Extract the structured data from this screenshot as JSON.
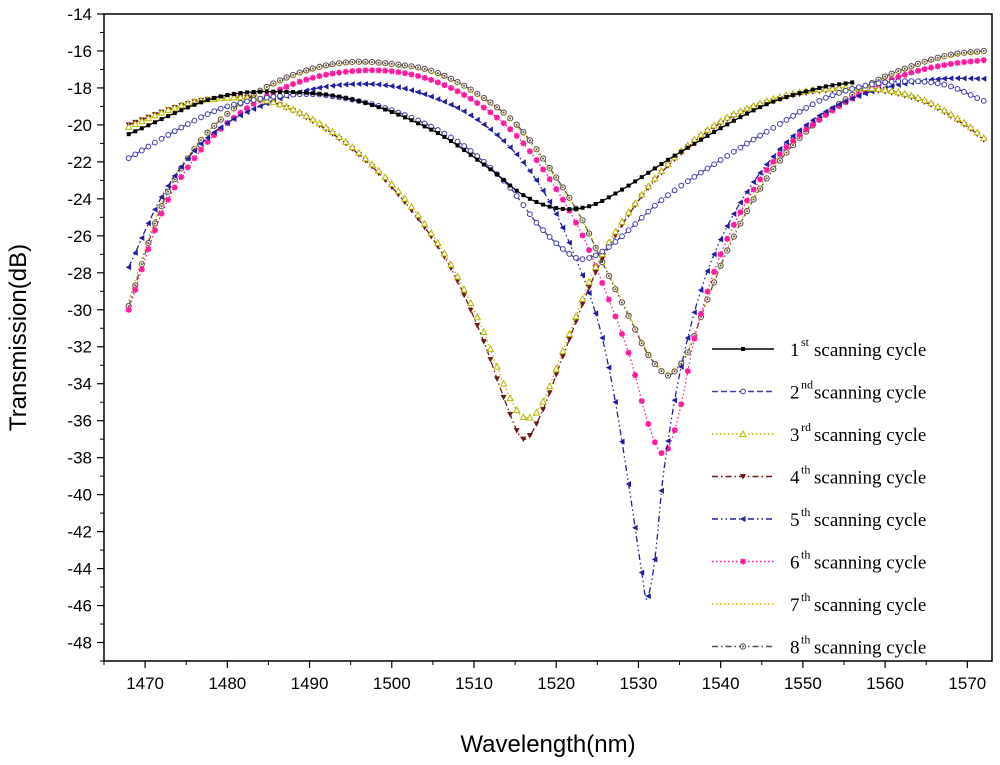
{
  "chart_data": {
    "type": "line",
    "title": "",
    "xlabel": "Wavelength(nm)",
    "ylabel": "Transmission(dB)",
    "xlim": [
      1465,
      1573
    ],
    "ylim": [
      -49,
      -14
    ],
    "xticks": [
      1470,
      1480,
      1490,
      1500,
      1510,
      1520,
      1530,
      1540,
      1550,
      1560,
      1570
    ],
    "yticks": [
      -48,
      -46,
      -44,
      -42,
      -40,
      -38,
      -36,
      -34,
      -32,
      -30,
      -28,
      -26,
      -24,
      -22,
      -20,
      -18,
      -16,
      -14
    ],
    "x_range": [
      1468,
      1572
    ],
    "grid": false,
    "legend_position": "bottom-right",
    "series": [
      {
        "name": "1st scanning cycle",
        "ord": "1",
        "suffix": "st",
        "label": "scanning cycle",
        "color": "#000000",
        "marker": "square",
        "dash": "solid",
        "points": [
          [
            1468,
            -20.5
          ],
          [
            1478,
            -18.6
          ],
          [
            1485,
            -18.2
          ],
          [
            1495,
            -18.6
          ],
          [
            1505,
            -20.3
          ],
          [
            1512,
            -22.4
          ],
          [
            1516,
            -23.8
          ],
          [
            1520,
            -24.5
          ],
          [
            1524,
            -24.4
          ],
          [
            1528,
            -23.5
          ],
          [
            1535,
            -21.5
          ],
          [
            1545,
            -19.0
          ],
          [
            1552,
            -18.0
          ],
          [
            1556,
            -17.7
          ]
        ]
      },
      {
        "name": "2nd scanning cycle",
        "ord": "2",
        "suffix": "nd",
        "label": "scanning cycle",
        "color": "#3f3fa8",
        "marker": "circle-open",
        "dash": "dash",
        "points": [
          [
            1468,
            -21.8
          ],
          [
            1475,
            -20.0
          ],
          [
            1480,
            -19.0
          ],
          [
            1487,
            -18.4
          ],
          [
            1492,
            -18.4
          ],
          [
            1500,
            -19.2
          ],
          [
            1508,
            -20.9
          ],
          [
            1514,
            -23.2
          ],
          [
            1518,
            -25.5
          ],
          [
            1522,
            -27.1
          ],
          [
            1524,
            -27.2
          ],
          [
            1527,
            -26.4
          ],
          [
            1533,
            -24.0
          ],
          [
            1540,
            -21.9
          ],
          [
            1547,
            -20.0
          ],
          [
            1553,
            -18.5
          ],
          [
            1560,
            -17.7
          ],
          [
            1567,
            -17.8
          ],
          [
            1572,
            -18.7
          ]
        ]
      },
      {
        "name": "3rd scanning cycle",
        "ord": "3",
        "suffix": "rd",
        "label": "scanning cycle",
        "color": "#b8b800",
        "marker": "triangle-up-open",
        "dash": "dot",
        "points": [
          [
            1468,
            -20.1
          ],
          [
            1474,
            -19.0
          ],
          [
            1478,
            -18.6
          ],
          [
            1484,
            -18.6
          ],
          [
            1490,
            -19.6
          ],
          [
            1496,
            -21.5
          ],
          [
            1502,
            -24.2
          ],
          [
            1507,
            -27.4
          ],
          [
            1511,
            -31.0
          ],
          [
            1514,
            -34.4
          ],
          [
            1516,
            -35.8
          ],
          [
            1518,
            -35.3
          ],
          [
            1521,
            -32.0
          ],
          [
            1525,
            -27.5
          ],
          [
            1530,
            -24.0
          ],
          [
            1535,
            -21.5
          ],
          [
            1540,
            -19.8
          ],
          [
            1545,
            -18.8
          ],
          [
            1550,
            -18.2
          ],
          [
            1555,
            -18.0
          ],
          [
            1560,
            -18.1
          ],
          [
            1565,
            -18.7
          ],
          [
            1570,
            -20.0
          ],
          [
            1572,
            -20.7
          ]
        ]
      },
      {
        "name": "4th scanning cycle",
        "ord": "4",
        "suffix": "th",
        "label": "scanning cycle",
        "color": "#6b1a1a",
        "marker": "triangle-down",
        "dash": "dashdot",
        "points": [
          [
            1468,
            -20.0
          ],
          [
            1474,
            -19.0
          ],
          [
            1478,
            -18.6
          ],
          [
            1484,
            -18.6
          ],
          [
            1490,
            -19.7
          ],
          [
            1496,
            -21.6
          ],
          [
            1502,
            -24.4
          ],
          [
            1507,
            -27.6
          ],
          [
            1511,
            -31.5
          ],
          [
            1514,
            -35.2
          ],
          [
            1516,
            -37.0
          ],
          [
            1518,
            -35.8
          ],
          [
            1521,
            -32.3
          ],
          [
            1525,
            -27.8
          ],
          [
            1530,
            -24.1
          ],
          [
            1535,
            -21.6
          ],
          [
            1540,
            -19.9
          ],
          [
            1545,
            -18.9
          ],
          [
            1550,
            -18.3
          ],
          [
            1555,
            -18.1
          ],
          [
            1560,
            -18.2
          ],
          [
            1565,
            -18.8
          ],
          [
            1570,
            -20.1
          ],
          [
            1572,
            -20.8
          ]
        ]
      },
      {
        "name": "5th scanning cycle",
        "ord": "5",
        "suffix": "th",
        "label": "scanning cycle",
        "color": "#2020a0",
        "marker": "triangle-left",
        "dash": "dashdotdot",
        "points": [
          [
            1468,
            -27.7
          ],
          [
            1472,
            -23.9
          ],
          [
            1476,
            -21.4
          ],
          [
            1480,
            -19.9
          ],
          [
            1485,
            -18.8
          ],
          [
            1490,
            -18.1
          ],
          [
            1495,
            -17.8
          ],
          [
            1500,
            -17.9
          ],
          [
            1505,
            -18.5
          ],
          [
            1510,
            -19.6
          ],
          [
            1515,
            -21.5
          ],
          [
            1519,
            -24.0
          ],
          [
            1522,
            -26.8
          ],
          [
            1525,
            -30.5
          ],
          [
            1527,
            -34.5
          ],
          [
            1529,
            -40.0
          ],
          [
            1530.5,
            -44.5
          ],
          [
            1531,
            -45.7
          ],
          [
            1532,
            -43.5
          ],
          [
            1533,
            -39.0
          ],
          [
            1535,
            -33.5
          ],
          [
            1538,
            -28.4
          ],
          [
            1542,
            -24.5
          ],
          [
            1547,
            -21.4
          ],
          [
            1552,
            -19.5
          ],
          [
            1557,
            -18.4
          ],
          [
            1562,
            -17.8
          ],
          [
            1567,
            -17.5
          ],
          [
            1572,
            -17.5
          ]
        ]
      },
      {
        "name": "6th scanning cycle",
        "ord": "6",
        "suffix": "th",
        "label": "scanning cycle",
        "color": "#ff1aa0",
        "marker": "star",
        "dash": "dot",
        "points": [
          [
            1468,
            -30.0
          ],
          [
            1472,
            -24.8
          ],
          [
            1476,
            -21.8
          ],
          [
            1480,
            -19.9
          ],
          [
            1485,
            -18.4
          ],
          [
            1490,
            -17.5
          ],
          [
            1495,
            -17.1
          ],
          [
            1500,
            -17.1
          ],
          [
            1505,
            -17.6
          ],
          [
            1510,
            -18.7
          ],
          [
            1515,
            -20.5
          ],
          [
            1519,
            -22.8
          ],
          [
            1523,
            -25.8
          ],
          [
            1526,
            -29.0
          ],
          [
            1529,
            -32.6
          ],
          [
            1531,
            -35.9
          ],
          [
            1532.5,
            -37.6
          ],
          [
            1533.5,
            -37.6
          ],
          [
            1535,
            -35.5
          ],
          [
            1537,
            -31.2
          ],
          [
            1540,
            -27.0
          ],
          [
            1544,
            -23.5
          ],
          [
            1548,
            -21.2
          ],
          [
            1553,
            -19.4
          ],
          [
            1558,
            -18.1
          ],
          [
            1563,
            -17.2
          ],
          [
            1568,
            -16.7
          ],
          [
            1572,
            -16.5
          ]
        ]
      },
      {
        "name": "7th scanning cycle",
        "ord": "7",
        "suffix": "th",
        "label": "scanning cycle",
        "color": "#c8b400",
        "marker": "none",
        "dash": "dot",
        "points": [
          [
            1468,
            -29.5
          ],
          [
            1472,
            -24.2
          ],
          [
            1476,
            -21.2
          ],
          [
            1480,
            -19.4
          ],
          [
            1485,
            -18.0
          ],
          [
            1490,
            -17.1
          ],
          [
            1495,
            -16.7
          ],
          [
            1500,
            -16.8
          ],
          [
            1505,
            -17.2
          ],
          [
            1510,
            -18.3
          ],
          [
            1515,
            -20.0
          ],
          [
            1519,
            -22.3
          ],
          [
            1523,
            -25.0
          ],
          [
            1526,
            -27.7
          ],
          [
            1529,
            -30.4
          ],
          [
            1531,
            -32.2
          ],
          [
            1533,
            -33.3
          ],
          [
            1534,
            -33.4
          ],
          [
            1536,
            -32.2
          ],
          [
            1538,
            -29.8
          ],
          [
            1541,
            -26.5
          ],
          [
            1545,
            -23.2
          ],
          [
            1549,
            -20.9
          ],
          [
            1554,
            -19.0
          ],
          [
            1559,
            -17.7
          ],
          [
            1564,
            -16.8
          ],
          [
            1568,
            -16.3
          ],
          [
            1572,
            -16.1
          ]
        ]
      },
      {
        "name": "8th scanning cycle",
        "ord": "8",
        "suffix": "th",
        "label": "scanning cycle",
        "color": "#5a4a4a",
        "marker": "circle-dot",
        "dash": "dashdot",
        "points": [
          [
            1468,
            -29.8
          ],
          [
            1472,
            -24.4
          ],
          [
            1476,
            -21.3
          ],
          [
            1480,
            -19.4
          ],
          [
            1485,
            -17.9
          ],
          [
            1490,
            -17.0
          ],
          [
            1495,
            -16.6
          ],
          [
            1500,
            -16.7
          ],
          [
            1505,
            -17.1
          ],
          [
            1510,
            -18.2
          ],
          [
            1515,
            -19.9
          ],
          [
            1519,
            -22.2
          ],
          [
            1523,
            -25.0
          ],
          [
            1526,
            -27.8
          ],
          [
            1529,
            -30.5
          ],
          [
            1531,
            -32.3
          ],
          [
            1533,
            -33.4
          ],
          [
            1534,
            -33.5
          ],
          [
            1536,
            -32.3
          ],
          [
            1538,
            -29.9
          ],
          [
            1541,
            -26.6
          ],
          [
            1545,
            -23.3
          ],
          [
            1549,
            -21.0
          ],
          [
            1554,
            -19.0
          ],
          [
            1559,
            -17.6
          ],
          [
            1564,
            -16.7
          ],
          [
            1568,
            -16.2
          ],
          [
            1572,
            -16.0
          ]
        ]
      }
    ]
  }
}
